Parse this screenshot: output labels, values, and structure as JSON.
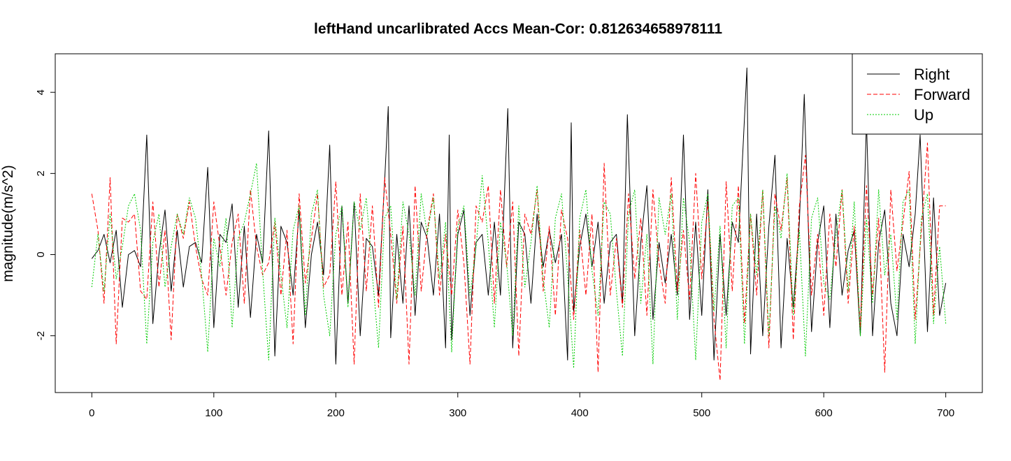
{
  "chart_data": {
    "type": "line",
    "title": "leftHand uncarlibrated Accs Mean-Cor: 0.812634658978111",
    "xlabel": "",
    "ylabel": "magnitude(m/s^2)",
    "xlim": [
      -30,
      730
    ],
    "ylim": [
      -3.4,
      4.95
    ],
    "x_ticks": [
      0,
      100,
      200,
      300,
      400,
      500,
      600,
      700
    ],
    "y_ticks": [
      -2,
      0,
      2,
      4
    ],
    "legend": {
      "position": "top-right"
    },
    "grid": false,
    "series": [
      {
        "name": "Right",
        "color": "#000000",
        "dash": "solid",
        "x": [
          0,
          5,
          10,
          15,
          20,
          25,
          30,
          35,
          40,
          45,
          50,
          55,
          60,
          65,
          70,
          75,
          80,
          85,
          90,
          95,
          100,
          105,
          110,
          115,
          120,
          125,
          130,
          135,
          140,
          145,
          150,
          155,
          160,
          165,
          170,
          175,
          180,
          185,
          190,
          195,
          200,
          205,
          210,
          215,
          220,
          225,
          230,
          235,
          240,
          243,
          245,
          250,
          255,
          260,
          265,
          270,
          275,
          280,
          285,
          290,
          293,
          295,
          300,
          305,
          310,
          315,
          320,
          325,
          330,
          335,
          341,
          345,
          350,
          355,
          360,
          365,
          370,
          375,
          380,
          385,
          390,
          393,
          395,
          400,
          405,
          410,
          415,
          420,
          425,
          430,
          435,
          439,
          445,
          450,
          455,
          460,
          465,
          470,
          475,
          480,
          485,
          490,
          495,
          500,
          505,
          510,
          515,
          520,
          525,
          530,
          537,
          540,
          545,
          550,
          555,
          560,
          565,
          570,
          575,
          580,
          584,
          590,
          595,
          600,
          605,
          610,
          615,
          620,
          625,
          630,
          635,
          640,
          645,
          650,
          655,
          660,
          665,
          670,
          675,
          679,
          685,
          690,
          695,
          700
        ],
        "values": [
          -0.1,
          0.1,
          0.5,
          -0.2,
          0.6,
          -1.3,
          0.0,
          0.1,
          -0.3,
          2.95,
          -1.7,
          0.0,
          1.1,
          -0.9,
          0.6,
          -0.8,
          0.2,
          0.3,
          -0.2,
          2.15,
          -1.8,
          0.5,
          0.3,
          1.25,
          -1.3,
          0.7,
          -1.55,
          0.5,
          -0.2,
          3.05,
          -2.5,
          0.7,
          0.3,
          -1.0,
          1.1,
          -1.8,
          0.0,
          0.8,
          -0.5,
          2.7,
          -2.7,
          1.2,
          -1.2,
          1.3,
          -2.0,
          0.4,
          0.2,
          -1.0,
          1.8,
          3.65,
          -2.05,
          0.5,
          -1.2,
          1.2,
          -1.5,
          0.8,
          0.4,
          -1.0,
          1.0,
          -2.3,
          2.95,
          -2.1,
          0.5,
          1.1,
          -1.5,
          0.3,
          0.5,
          -1.0,
          0.8,
          -1.0,
          3.6,
          -2.3,
          0.8,
          0.5,
          -1.2,
          1.0,
          -0.3,
          0.6,
          -0.2,
          0.5,
          -2.6,
          3.25,
          -1.4,
          0.2,
          1.0,
          -0.3,
          0.8,
          -1.2,
          0.3,
          0.5,
          -1.2,
          3.45,
          -2.0,
          0.3,
          1.7,
          -1.6,
          0.3,
          -0.7,
          0.5,
          -1.0,
          2.95,
          -1.6,
          0.8,
          -1.5,
          1.6,
          -2.6,
          0.5,
          -1.5,
          0.8,
          0.3,
          4.6,
          -2.45,
          1.0,
          -2.0,
          0.7,
          2.45,
          -2.3,
          0.4,
          -1.3,
          0.8,
          3.95,
          -1.9,
          0.3,
          1.2,
          -1.8,
          1.0,
          -1.0,
          0.1,
          0.6,
          -2.0,
          3.3,
          -2.0,
          0.3,
          1.1,
          -1.2,
          -2.0,
          0.5,
          -0.3,
          1.0,
          2.95,
          -1.9,
          1.4,
          -1.5,
          -0.7
        ]
      },
      {
        "name": "Forward",
        "color": "#ff0000",
        "dash": "6,3",
        "x": [
          0,
          5,
          10,
          15,
          20,
          25,
          30,
          35,
          40,
          45,
          50,
          55,
          60,
          65,
          70,
          75,
          80,
          85,
          90,
          95,
          100,
          105,
          110,
          115,
          120,
          125,
          130,
          135,
          140,
          145,
          150,
          155,
          160,
          165,
          170,
          175,
          180,
          185,
          190,
          195,
          200,
          205,
          210,
          215,
          220,
          225,
          230,
          235,
          240,
          245,
          250,
          255,
          260,
          265,
          270,
          275,
          280,
          285,
          290,
          295,
          300,
          305,
          310,
          315,
          320,
          325,
          330,
          335,
          340,
          345,
          350,
          355,
          360,
          365,
          370,
          375,
          380,
          385,
          390,
          395,
          400,
          405,
          410,
          415,
          420,
          425,
          430,
          435,
          440,
          445,
          450,
          455,
          460,
          465,
          470,
          475,
          480,
          485,
          490,
          495,
          500,
          505,
          510,
          515,
          520,
          525,
          530,
          535,
          540,
          545,
          550,
          555,
          560,
          565,
          570,
          575,
          580,
          585,
          590,
          595,
          600,
          605,
          610,
          615,
          620,
          625,
          630,
          635,
          640,
          645,
          650,
          655,
          660,
          665,
          670,
          675,
          680,
          685,
          690,
          695,
          700
        ],
        "values": [
          1.5,
          0.6,
          -1.2,
          1.9,
          -2.2,
          0.9,
          0.8,
          1.0,
          -0.9,
          -1.1,
          1.3,
          -0.8,
          0.6,
          -2.1,
          1.0,
          0.4,
          1.3,
          0.2,
          -0.6,
          -1.0,
          1.3,
          0.2,
          -1.0,
          0.3,
          1.0,
          -1.2,
          1.6,
          0.2,
          -0.5,
          -0.2,
          0.8,
          -1.0,
          0.6,
          -2.2,
          1.5,
          -0.7,
          0.4,
          1.5,
          -0.8,
          -0.5,
          1.8,
          -1.0,
          0.8,
          -2.7,
          1.5,
          -0.9,
          1.2,
          -1.3,
          1.9,
          0.5,
          -1.2,
          0.7,
          -2.7,
          1.7,
          -0.9,
          0.6,
          1.5,
          -1.0,
          0.5,
          -1.0,
          1.1,
          -0.2,
          -2.7,
          1.2,
          0.8,
          1.7,
          -1.2,
          1.6,
          -0.3,
          1.3,
          -2.5,
          1.0,
          0.5,
          1.6,
          -0.9,
          0.7,
          -1.5,
          1.1,
          0.4,
          -1.6,
          0.6,
          -1.0,
          1.0,
          -2.9,
          2.25,
          -1.0,
          0.4,
          -1.3,
          1.5,
          -0.6,
          0.9,
          -1.5,
          1.6,
          -0.2,
          -1.2,
          1.9,
          -0.9,
          0.6,
          -1.1,
          2.0,
          -0.6,
          1.3,
          -1.6,
          -3.1,
          1.8,
          -0.9,
          1.7,
          -1.7,
          1.0,
          -1.0,
          1.6,
          -2.3,
          1.5,
          0.6,
          1.9,
          -2.1,
          1.2,
          2.45,
          -1.0,
          0.5,
          -1.5,
          1.0,
          -0.3,
          1.6,
          -1.2,
          0.7,
          -1.8,
          1.7,
          -1.0,
          0.9,
          -2.9,
          1.6,
          -0.4,
          0.8,
          2.05,
          -1.6,
          0.6,
          2.75,
          -1.5,
          1.2,
          1.2
        ]
      },
      {
        "name": "Up",
        "color": "#00cc00",
        "dash": "2,2",
        "x": [
          0,
          5,
          10,
          15,
          20,
          25,
          30,
          35,
          40,
          45,
          50,
          55,
          60,
          65,
          70,
          75,
          80,
          85,
          90,
          95,
          100,
          105,
          110,
          115,
          120,
          125,
          130,
          135,
          140,
          145,
          150,
          155,
          160,
          165,
          170,
          175,
          180,
          185,
          190,
          195,
          200,
          205,
          210,
          215,
          220,
          225,
          230,
          235,
          240,
          245,
          250,
          255,
          260,
          265,
          270,
          275,
          280,
          285,
          290,
          295,
          300,
          305,
          310,
          315,
          320,
          325,
          330,
          335,
          340,
          345,
          350,
          355,
          360,
          365,
          370,
          375,
          380,
          385,
          390,
          395,
          400,
          405,
          410,
          415,
          420,
          425,
          430,
          435,
          440,
          445,
          450,
          455,
          460,
          465,
          470,
          475,
          480,
          485,
          490,
          495,
          500,
          505,
          510,
          515,
          520,
          525,
          530,
          535,
          540,
          545,
          550,
          555,
          560,
          565,
          570,
          575,
          580,
          585,
          590,
          595,
          600,
          605,
          610,
          615,
          620,
          625,
          630,
          635,
          640,
          645,
          650,
          655,
          660,
          665,
          670,
          675,
          680,
          685,
          690,
          695,
          700
        ],
        "values": [
          -0.8,
          0.5,
          -0.9,
          1.0,
          -0.6,
          0.2,
          1.2,
          1.5,
          0.6,
          -2.2,
          0.3,
          1.0,
          -0.8,
          0.2,
          1.0,
          0.5,
          1.4,
          0.9,
          -0.5,
          -2.4,
          0.4,
          -0.3,
          0.9,
          -1.8,
          0.4,
          0.8,
          1.5,
          2.25,
          -0.4,
          -2.6,
          0.9,
          -0.5,
          -1.8,
          0.6,
          1.2,
          -1.5,
          1.0,
          1.6,
          -1.0,
          -2.0,
          0.5,
          1.2,
          -1.3,
          1.3,
          0.6,
          1.4,
          -0.5,
          -2.3,
          0.9,
          1.2,
          -1.1,
          1.3,
          0.5,
          -1.0,
          1.5,
          0.5,
          1.4,
          -0.6,
          0.8,
          -2.4,
          0.7,
          1.2,
          -1.0,
          0.2,
          1.95,
          0.3,
          -1.8,
          0.8,
          -0.2,
          -2.0,
          1.2,
          -0.8,
          0.3,
          1.7,
          -0.6,
          -1.8,
          0.9,
          1.5,
          -0.5,
          -2.8,
          0.9,
          1.6,
          -0.4,
          -1.5,
          1.3,
          1.0,
          -0.9,
          -2.5,
          1.0,
          1.6,
          -1.2,
          0.5,
          -2.7,
          1.4,
          0.5,
          1.5,
          -1.6,
          1.4,
          0.3,
          -2.6,
          0.8,
          1.5,
          -1.4,
          0.7,
          -2.3,
          1.2,
          1.4,
          -2.2,
          1.0,
          -0.5,
          1.6,
          -2.0,
          1.2,
          0.4,
          2.0,
          -1.5,
          0.6,
          -2.5,
          0.9,
          1.4,
          -0.7,
          -1.1,
          0.5,
          1.6,
          -0.9,
          1.3,
          -2.0,
          0.9,
          -1.2,
          1.6,
          -0.5,
          0.5,
          -1.6,
          1.3,
          1.6,
          -2.2,
          0.9,
          1.5,
          -1.7,
          0.2,
          -1.7
        ]
      }
    ]
  }
}
